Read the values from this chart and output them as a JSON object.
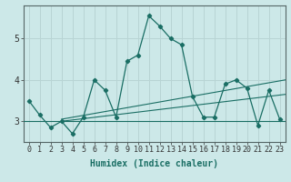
{
  "title": "",
  "xlabel": "Humidex (Indice chaleur)",
  "ylabel": "",
  "bg_color": "#cce8e8",
  "grid_color": "#b8d4d4",
  "line_color": "#1a6e64",
  "x_data": [
    0,
    1,
    2,
    3,
    4,
    5,
    6,
    7,
    8,
    9,
    10,
    11,
    12,
    13,
    14,
    15,
    16,
    17,
    18,
    19,
    20,
    21,
    22,
    23
  ],
  "y_data": [
    3.5,
    3.15,
    2.85,
    3.0,
    2.7,
    3.1,
    4.0,
    3.75,
    3.1,
    4.45,
    4.6,
    5.55,
    5.3,
    5.0,
    4.85,
    3.6,
    3.1,
    3.1,
    3.9,
    4.0,
    3.8,
    2.9,
    3.75,
    3.05
  ],
  "ylim": [
    2.5,
    5.8
  ],
  "xlim": [
    -0.5,
    23.5
  ],
  "yticks": [
    3,
    4,
    5
  ],
  "xticks": [
    0,
    1,
    2,
    3,
    4,
    5,
    6,
    7,
    8,
    9,
    10,
    11,
    12,
    13,
    14,
    15,
    16,
    17,
    18,
    19,
    20,
    21,
    22,
    23
  ],
  "tick_fontsize": 6,
  "label_fontsize": 7,
  "reg_lines": [
    {
      "x0": -0.5,
      "y0": 3.0,
      "x1": 23.5,
      "y1": 3.0
    },
    {
      "x0": 3.0,
      "y0": 3.0,
      "x1": 23.5,
      "y1": 3.65
    },
    {
      "x0": 3.0,
      "y0": 3.05,
      "x1": 23.5,
      "y1": 4.0
    }
  ]
}
